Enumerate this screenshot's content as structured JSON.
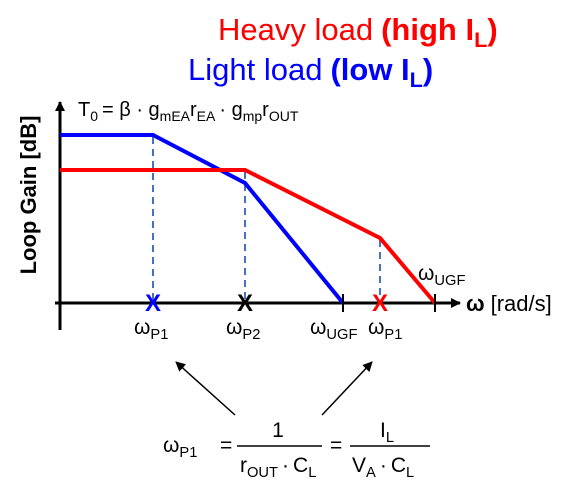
{
  "legend": [
    {
      "text": "Heavy load",
      "emphasis": "(high I",
      "subscript": "L",
      "close": ")"
    },
    {
      "text": "Light load",
      "emphasis": "(low I",
      "subscript": "L",
      "close": ")"
    }
  ],
  "dc_gain": {
    "symbol": "T",
    "symbol_sub": "0",
    "part1": "= β · g",
    "sub1": "mEA",
    "part2": "r",
    "sub2": "EA",
    "part3": "· g",
    "sub3": "mp",
    "part4": "r",
    "sub4": "OUT"
  },
  "y_axis_label": "Loop Gain [dB]",
  "x_axis_label": {
    "symbol": "ω",
    "unit": "[rad/s]"
  },
  "markers": [
    "X",
    "X",
    "X"
  ],
  "frequency_labels": [
    {
      "symbol": "ω",
      "subscript": "P1"
    },
    {
      "symbol": "ω",
      "subscript": "P2"
    },
    {
      "symbol": "ω",
      "subscript": "UGF"
    },
    {
      "symbol": "ω",
      "subscript": "P1"
    },
    {
      "symbol": "ω",
      "subscript": "UGF"
    }
  ],
  "formula": {
    "lhs": "ω",
    "lhs_sub": "P1",
    "eq1": "=",
    "num1": "1",
    "den1_a": "r",
    "den1_a_sub": "OUT",
    "den1_dot": "·",
    "den1_b": "C",
    "den1_b_sub": "L",
    "eq2": "=",
    "num2": "I",
    "num2_sub": "L",
    "den2_a": "V",
    "den2_a_sub": "A",
    "den2_dot": "·",
    "den2_b": "C",
    "den2_b_sub": "L"
  }
}
